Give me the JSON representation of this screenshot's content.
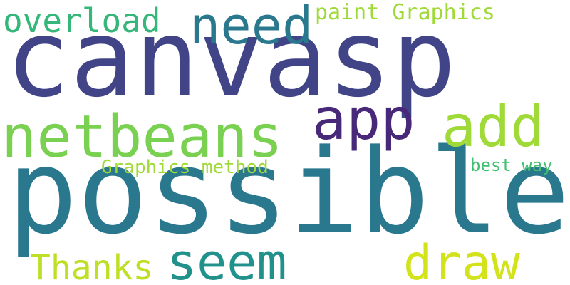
{
  "words": {
    "canvasp": {
      "text": "canvasp",
      "color": "#414487"
    },
    "possible": {
      "text": "possible",
      "color": "#2a788e"
    },
    "netbeans": {
      "text": "netbeans",
      "color": "#7ad151"
    },
    "need": {
      "text": "need",
      "color": "#2a788e"
    },
    "overload": {
      "text": "overload",
      "color": "#35b779"
    },
    "paint_graphics": {
      "text": "paint Graphics",
      "color": "#a0da39"
    },
    "app": {
      "text": "app",
      "color": "#482878"
    },
    "add": {
      "text": "add",
      "color": "#a0da39"
    },
    "graphics_method": {
      "text": "Graphics method",
      "color": "#a0da39"
    },
    "best_way": {
      "text": "best way",
      "color": "#43bf71"
    },
    "seem": {
      "text": "seem",
      "color": "#21918c"
    },
    "thanks": {
      "text": "Thanks",
      "color": "#bddf26"
    },
    "draw": {
      "text": "draw",
      "color": "#d2e21b"
    }
  }
}
